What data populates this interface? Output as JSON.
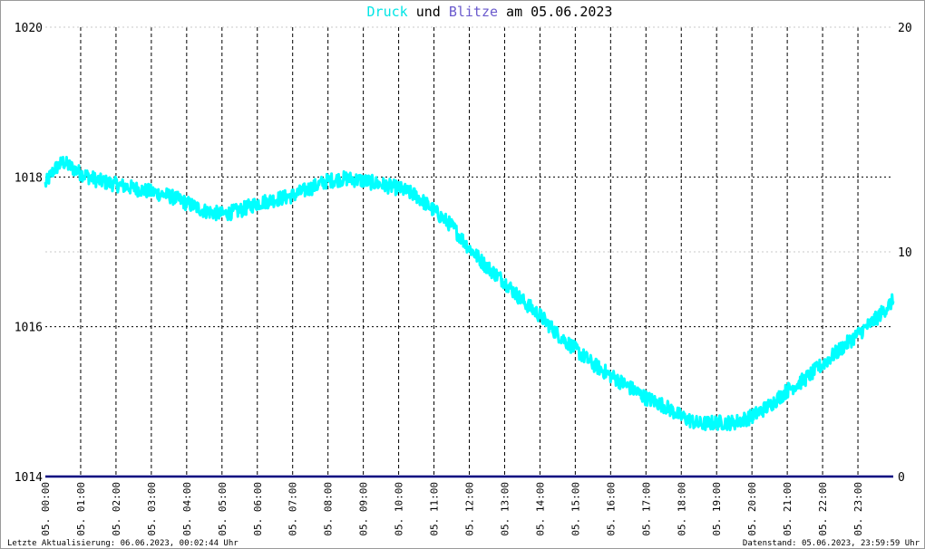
{
  "title": {
    "part1": "Druck",
    "part2": " und ",
    "part3": "Blitze",
    "part4": " am 05.06.2023"
  },
  "colors": {
    "pressure": "#00ffff",
    "lightning": "#000080",
    "title_druck": "#00e5e5",
    "title_blitze": "#6a5acd",
    "grid": "#000000",
    "frame": "#9a9a9a"
  },
  "footer": {
    "left": "Letzte Aktualisierung: 06.06.2023, 00:02:44 Uhr",
    "right": "Datenstand: 05.06.2023, 23:59:59 Uhr"
  },
  "chart_data": {
    "type": "line",
    "title": "Druck und Blitze am 05.06.2023",
    "y_left": {
      "min": 1014,
      "max": 1020,
      "ticks": [
        "1014",
        "1016",
        "1018",
        "1020"
      ]
    },
    "y_right": {
      "min": 0,
      "max": 20,
      "ticks": [
        "0",
        "10",
        "20"
      ]
    },
    "x": {
      "min_hours": 0,
      "max_hours": 24,
      "ticks": [
        "05. 00:00",
        "05. 01:00",
        "05. 02:00",
        "05. 03:00",
        "05. 04:00",
        "05. 05:00",
        "05. 06:00",
        "05. 07:00",
        "05. 08:00",
        "05. 09:00",
        "05. 10:00",
        "05. 11:00",
        "05. 12:00",
        "05. 13:00",
        "05. 14:00",
        "05. 15:00",
        "05. 16:00",
        "05. 17:00",
        "05. 18:00",
        "05. 19:00",
        "05. 20:00",
        "05. 21:00",
        "05. 22:00",
        "05. 23:00"
      ]
    },
    "grid": true,
    "series": [
      {
        "name": "Druck",
        "axis": "left",
        "color": "#00ffff",
        "noise": 0.1,
        "x": [
          0,
          0.25,
          0.5,
          1,
          1.5,
          2,
          2.5,
          3,
          3.5,
          4,
          4.5,
          5,
          5.5,
          6,
          6.5,
          7,
          7.5,
          8,
          8.5,
          9,
          9.5,
          10,
          10.5,
          11,
          11.5,
          12,
          12.5,
          13,
          13.5,
          14,
          14.5,
          15,
          15.5,
          16,
          16.5,
          17,
          17.5,
          18,
          18.5,
          19,
          19.5,
          20,
          20.5,
          21,
          21.5,
          22,
          22.5,
          23,
          23.5,
          24
        ],
        "y": [
          1017.9,
          1018.1,
          1018.2,
          1018.05,
          1017.95,
          1017.9,
          1017.85,
          1017.8,
          1017.75,
          1017.65,
          1017.55,
          1017.5,
          1017.55,
          1017.65,
          1017.7,
          1017.75,
          1017.85,
          1017.95,
          1017.98,
          1017.95,
          1017.9,
          1017.85,
          1017.75,
          1017.55,
          1017.35,
          1017.05,
          1016.8,
          1016.6,
          1016.35,
          1016.15,
          1015.9,
          1015.7,
          1015.5,
          1015.35,
          1015.2,
          1015.05,
          1014.95,
          1014.8,
          1014.7,
          1014.72,
          1014.72,
          1014.8,
          1014.95,
          1015.15,
          1015.3,
          1015.5,
          1015.7,
          1015.9,
          1016.1,
          1016.35
        ]
      },
      {
        "name": "Blitze",
        "axis": "right",
        "color": "#000080",
        "x": [
          0,
          24
        ],
        "y": [
          0,
          0
        ]
      }
    ]
  }
}
